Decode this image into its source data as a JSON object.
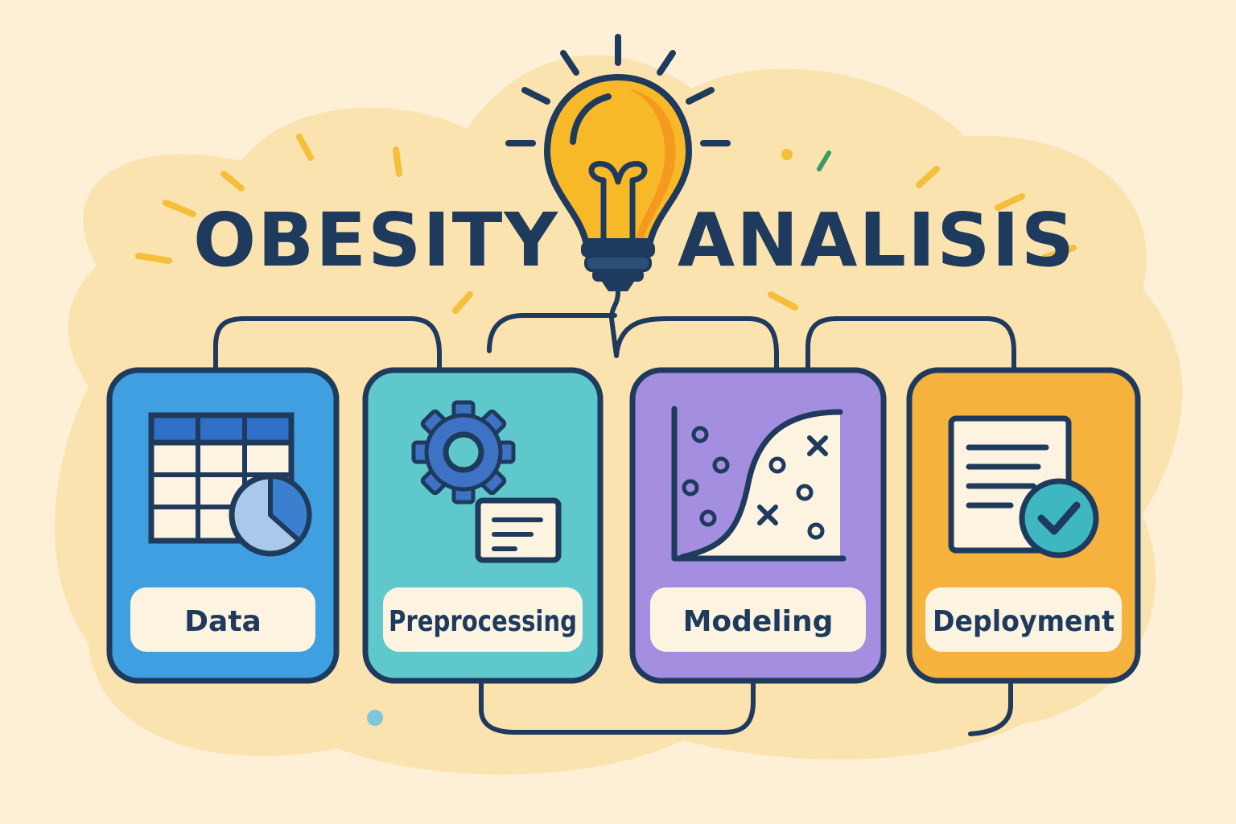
{
  "title": {
    "left_word": "OBESITY",
    "right_word": "ANALISIS"
  },
  "stages": [
    {
      "label": "Data",
      "icon": "table-pie-chart-icon",
      "color": "#3f9fe0"
    },
    {
      "label": "Preprocessing",
      "icon": "gear-document-icon",
      "color": "#5fc8cc"
    },
    {
      "label": "Modeling",
      "icon": "scatter-plot-curve-icon",
      "color": "#a38ee0"
    },
    {
      "label": "Deployment",
      "icon": "document-check-icon",
      "color": "#f5b23d"
    }
  ],
  "colors": {
    "background": "#fdf0d6",
    "blob": "#fbe3b0",
    "outline": "#1e3a5c",
    "bulb": "#f7b928",
    "label_box": "#fdf3e1"
  }
}
